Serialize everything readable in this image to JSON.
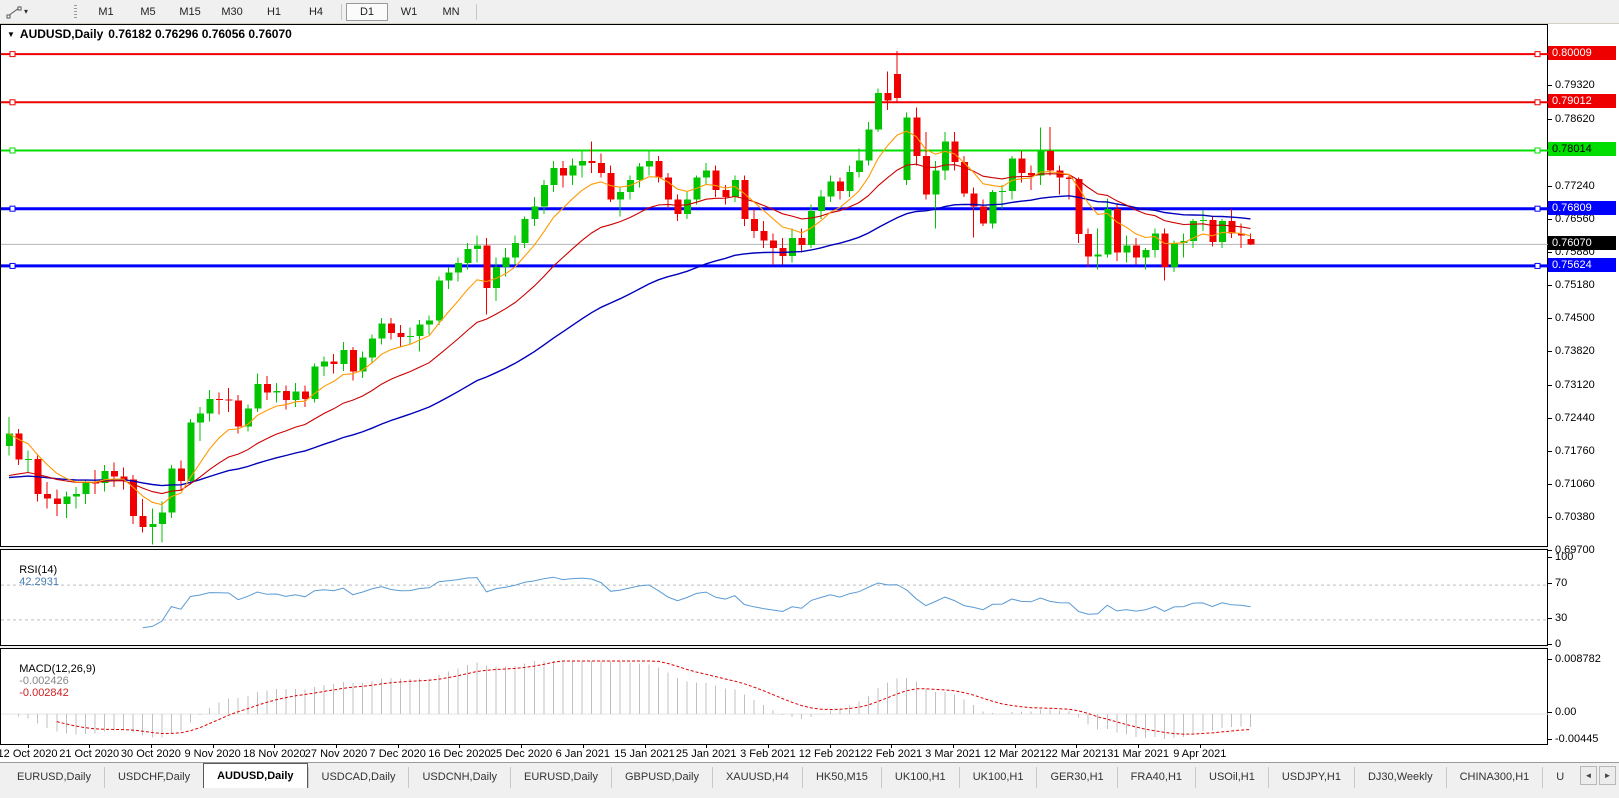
{
  "toolbar": {
    "timeframes": [
      "M1",
      "M5",
      "M15",
      "M30",
      "H1",
      "H4",
      "D1",
      "W1",
      "MN"
    ],
    "active_timeframe": "D1"
  },
  "chart": {
    "title_symbol": "AUDUSD,Daily",
    "title_values": "0.76182 0.76296 0.76056 0.76070",
    "price_range": {
      "max": 0.80612,
      "min": 0.69784
    },
    "price_ticks": [
      "0.79320",
      "0.78620",
      "0.77940",
      "0.77240",
      "0.76560",
      "0.75880",
      "0.75180",
      "0.74500",
      "0.73820",
      "0.73120",
      "0.72440",
      "0.71760",
      "0.71060",
      "0.70380",
      "0.69700"
    ],
    "lines": [
      {
        "price": 0.80009,
        "label": "0.80009",
        "color": "#ee0000",
        "text": "#ffffff",
        "width": 2
      },
      {
        "price": 0.79012,
        "label": "0.79012",
        "color": "#ee0000",
        "text": "#ffffff",
        "width": 2
      },
      {
        "price": 0.78014,
        "label": "0.78014",
        "color": "#00dd00",
        "text": "#000000",
        "width": 2
      },
      {
        "price": 0.76809,
        "label": "0.76809",
        "color": "#0000ff",
        "text": "#ffffff",
        "width": 3
      },
      {
        "price": 0.75624,
        "label": "0.75624",
        "color": "#0000ff",
        "text": "#ffffff",
        "width": 3
      }
    ],
    "current_price": {
      "price": 0.7607,
      "label": "0.76070",
      "line_color": "#b4b4b4",
      "bg": "#000000",
      "text": "#ffffff"
    },
    "colors": {
      "bull": "#00c400",
      "bear": "#f00000",
      "ma_fast": "#ff9900",
      "ma_mid": "#cc0000",
      "ma_slow": "#0000bb"
    },
    "ma_periods": {
      "fast": 8,
      "mid": 20,
      "slow": 50
    },
    "dates": [
      "12 Oct 2020",
      "21 Oct 2020",
      "30 Oct 2020",
      "9 Nov 2020",
      "18 Nov 2020",
      "27 Nov 2020",
      "7 Dec 2020",
      "16 Dec 2020",
      "25 Dec 2020",
      "6 Jan 2021",
      "15 Jan 2021",
      "25 Jan 2021",
      "3 Feb 2021",
      "12 Feb 2021",
      "22 Feb 2021",
      "3 Mar 2021",
      "12 Mar 2021",
      "22 Mar 2021",
      "31 Mar 2021",
      "9 Apr 2021"
    ],
    "chart_data": {
      "type": "candlestick+indicators",
      "symbol": "AUDUSD",
      "timeframe": "Daily",
      "candles_ohlc": [
        [
          0.719,
          0.725,
          0.717,
          0.7215
        ],
        [
          0.7215,
          0.7225,
          0.715,
          0.7162
        ],
        [
          0.7162,
          0.718,
          0.7135,
          0.7163
        ],
        [
          0.7163,
          0.717,
          0.7075,
          0.709
        ],
        [
          0.709,
          0.7115,
          0.706,
          0.7081
        ],
        [
          0.7081,
          0.71,
          0.7045,
          0.707
        ],
        [
          0.707,
          0.7095,
          0.704,
          0.7085
        ],
        [
          0.7085,
          0.7105,
          0.706,
          0.709
        ],
        [
          0.709,
          0.712,
          0.707,
          0.7114
        ],
        [
          0.7114,
          0.714,
          0.709,
          0.7113
        ],
        [
          0.7113,
          0.715,
          0.7095,
          0.7138
        ],
        [
          0.7138,
          0.7155,
          0.7105,
          0.7126
        ],
        [
          0.7126,
          0.7145,
          0.71,
          0.712
        ],
        [
          0.712,
          0.713,
          0.7028,
          0.7045
        ],
        [
          0.7045,
          0.708,
          0.701,
          0.7022
        ],
        [
          0.7022,
          0.706,
          0.6986,
          0.7028
        ],
        [
          0.7028,
          0.7075,
          0.699,
          0.7052
        ],
        [
          0.7052,
          0.715,
          0.704,
          0.7143
        ],
        [
          0.7143,
          0.716,
          0.71,
          0.7117
        ],
        [
          0.7117,
          0.7245,
          0.711,
          0.7238
        ],
        [
          0.7238,
          0.727,
          0.72,
          0.7257
        ],
        [
          0.7257,
          0.7305,
          0.724,
          0.7287
        ],
        [
          0.7287,
          0.73,
          0.7255,
          0.7286
        ],
        [
          0.7286,
          0.731,
          0.726,
          0.7284
        ],
        [
          0.7284,
          0.7295,
          0.7215,
          0.723
        ],
        [
          0.723,
          0.7275,
          0.722,
          0.7267
        ],
        [
          0.7267,
          0.734,
          0.726,
          0.7318
        ],
        [
          0.7318,
          0.7335,
          0.7285,
          0.73
        ],
        [
          0.73,
          0.732,
          0.728,
          0.7303
        ],
        [
          0.7303,
          0.7315,
          0.7265,
          0.7285
        ],
        [
          0.7285,
          0.732,
          0.727,
          0.7302
        ],
        [
          0.7302,
          0.7315,
          0.727,
          0.7287
        ],
        [
          0.7287,
          0.736,
          0.728,
          0.7354
        ],
        [
          0.7354,
          0.7375,
          0.7335,
          0.7365
        ],
        [
          0.7365,
          0.738,
          0.734,
          0.7359
        ],
        [
          0.7359,
          0.7405,
          0.7345,
          0.7388
        ],
        [
          0.7388,
          0.7395,
          0.7325,
          0.7344
        ],
        [
          0.7344,
          0.7385,
          0.733,
          0.7373
        ],
        [
          0.7373,
          0.742,
          0.736,
          0.7412
        ],
        [
          0.7412,
          0.7455,
          0.74,
          0.7443
        ],
        [
          0.7443,
          0.7455,
          0.741,
          0.7424
        ],
        [
          0.7424,
          0.744,
          0.7395,
          0.7415
        ],
        [
          0.7415,
          0.7435,
          0.74,
          0.7417
        ],
        [
          0.7417,
          0.745,
          0.7385,
          0.7441
        ],
        [
          0.7441,
          0.746,
          0.742,
          0.7449
        ],
        [
          0.7449,
          0.754,
          0.744,
          0.7532
        ],
        [
          0.7532,
          0.756,
          0.7515,
          0.7549
        ],
        [
          0.7549,
          0.758,
          0.753,
          0.7568
        ],
        [
          0.7568,
          0.761,
          0.7555,
          0.7597
        ],
        [
          0.7597,
          0.7625,
          0.757,
          0.7605
        ],
        [
          0.7605,
          0.762,
          0.7462,
          0.7517
        ],
        [
          0.7517,
          0.758,
          0.749,
          0.756
        ],
        [
          0.756,
          0.76,
          0.754,
          0.758
        ],
        [
          0.758,
          0.7625,
          0.7565,
          0.761
        ],
        [
          0.761,
          0.7665,
          0.76,
          0.766
        ],
        [
          0.766,
          0.7705,
          0.7645,
          0.7685
        ],
        [
          0.7685,
          0.774,
          0.767,
          0.773
        ],
        [
          0.773,
          0.778,
          0.7715,
          0.7765
        ],
        [
          0.7765,
          0.778,
          0.7725,
          0.775
        ],
        [
          0.775,
          0.7785,
          0.773,
          0.777
        ],
        [
          0.777,
          0.78,
          0.7745,
          0.778
        ],
        [
          0.778,
          0.782,
          0.7755,
          0.7775
        ],
        [
          0.7775,
          0.7795,
          0.7745,
          0.7755
        ],
        [
          0.7755,
          0.777,
          0.7695,
          0.77
        ],
        [
          0.77,
          0.7725,
          0.7665,
          0.7715
        ],
        [
          0.7715,
          0.775,
          0.77,
          0.774
        ],
        [
          0.774,
          0.7775,
          0.7725,
          0.7768
        ],
        [
          0.7768,
          0.78,
          0.775,
          0.778
        ],
        [
          0.778,
          0.779,
          0.7735,
          0.7745
        ],
        [
          0.7745,
          0.7755,
          0.768,
          0.77
        ],
        [
          0.77,
          0.771,
          0.7655,
          0.767
        ],
        [
          0.767,
          0.7715,
          0.766,
          0.77
        ],
        [
          0.77,
          0.775,
          0.769,
          0.7745
        ],
        [
          0.7745,
          0.7775,
          0.773,
          0.776
        ],
        [
          0.776,
          0.777,
          0.7705,
          0.772
        ],
        [
          0.772,
          0.773,
          0.769,
          0.7705
        ],
        [
          0.7705,
          0.775,
          0.7695,
          0.774
        ],
        [
          0.774,
          0.775,
          0.7645,
          0.766
        ],
        [
          0.766,
          0.768,
          0.762,
          0.7635
        ],
        [
          0.7635,
          0.7655,
          0.76,
          0.7615
        ],
        [
          0.7615,
          0.763,
          0.7564,
          0.76
        ],
        [
          0.76,
          0.762,
          0.7565,
          0.7583
        ],
        [
          0.7583,
          0.764,
          0.757,
          0.762
        ],
        [
          0.762,
          0.764,
          0.759,
          0.7606
        ],
        [
          0.7606,
          0.769,
          0.76,
          0.7676
        ],
        [
          0.7676,
          0.772,
          0.766,
          0.7706
        ],
        [
          0.7706,
          0.775,
          0.7695,
          0.7737
        ],
        [
          0.7737,
          0.7745,
          0.77,
          0.7718
        ],
        [
          0.7718,
          0.777,
          0.7705,
          0.7757
        ],
        [
          0.7757,
          0.7805,
          0.7745,
          0.7781
        ],
        [
          0.7781,
          0.786,
          0.777,
          0.7845
        ],
        [
          0.7845,
          0.793,
          0.784,
          0.792
        ],
        [
          0.792,
          0.7965,
          0.7885,
          0.7905
        ],
        [
          0.796,
          0.8007,
          0.79,
          0.791
        ],
        [
          0.774,
          0.788,
          0.773,
          0.787
        ],
        [
          0.787,
          0.789,
          0.777,
          0.779
        ],
        [
          0.779,
          0.784,
          0.77,
          0.771
        ],
        [
          0.771,
          0.778,
          0.764,
          0.776
        ],
        [
          0.776,
          0.784,
          0.774,
          0.782
        ],
        [
          0.782,
          0.784,
          0.776,
          0.7778
        ],
        [
          0.7778,
          0.779,
          0.7705,
          0.7712
        ],
        [
          0.7712,
          0.7725,
          0.7621,
          0.7685
        ],
        [
          0.7685,
          0.77,
          0.7645,
          0.765
        ],
        [
          0.765,
          0.772,
          0.764,
          0.7715
        ],
        [
          0.7715,
          0.773,
          0.768,
          0.7718
        ],
        [
          0.7718,
          0.779,
          0.77,
          0.7785
        ],
        [
          0.7785,
          0.78,
          0.7735,
          0.7755
        ],
        [
          0.7755,
          0.777,
          0.772,
          0.775
        ],
        [
          0.775,
          0.7849,
          0.773,
          0.78
        ],
        [
          0.78,
          0.785,
          0.775,
          0.776
        ],
        [
          0.776,
          0.777,
          0.771,
          0.7745
        ],
        [
          0.7745,
          0.775,
          0.77,
          0.7742
        ],
        [
          0.7742,
          0.7745,
          0.761,
          0.7628
        ],
        [
          0.7628,
          0.764,
          0.756,
          0.7582
        ],
        [
          0.7582,
          0.764,
          0.7555,
          0.7586
        ],
        [
          0.7586,
          0.7702,
          0.758,
          0.768
        ],
        [
          0.768,
          0.769,
          0.7573,
          0.759
        ],
        [
          0.759,
          0.7625,
          0.757,
          0.7605
        ],
        [
          0.7605,
          0.762,
          0.7565,
          0.758
        ],
        [
          0.758,
          0.76,
          0.7555,
          0.7595
        ],
        [
          0.7595,
          0.764,
          0.758,
          0.763
        ],
        [
          0.763,
          0.764,
          0.7532,
          0.756
        ],
        [
          0.756,
          0.7615,
          0.755,
          0.761
        ],
        [
          0.761,
          0.763,
          0.758,
          0.7614
        ],
        [
          0.7614,
          0.766,
          0.76,
          0.7655
        ],
        [
          0.7655,
          0.7677,
          0.7635,
          0.7657
        ],
        [
          0.7657,
          0.7665,
          0.7603,
          0.7612
        ],
        [
          0.7612,
          0.766,
          0.76,
          0.7655
        ],
        [
          0.7655,
          0.768,
          0.762,
          0.763
        ],
        [
          0.763,
          0.765,
          0.76,
          0.7625
        ],
        [
          0.76182,
          0.76296,
          0.76056,
          0.7607
        ]
      ]
    }
  },
  "rsi": {
    "label": "RSI(14)",
    "value": "42.2931",
    "period": 14,
    "levels": [
      70,
      30
    ],
    "axis": [
      "100",
      "70",
      "30",
      "0"
    ],
    "color": "#5b9bd5",
    "level_color": "#bdbdbd"
  },
  "macd": {
    "label": "MACD(12,26,9)",
    "value1": "-0.002426",
    "value2": "-0.002842",
    "fast": 12,
    "slow": 26,
    "signal": 9,
    "axis_max": "0.008782",
    "axis_zero": "0.00",
    "axis_min": "-0.00445",
    "hist_color": "#c0c0c0",
    "signal_color": "#e00000"
  },
  "tabs": {
    "items": [
      "EURUSD,Daily",
      "USDCHF,Daily",
      "AUDUSD,Daily",
      "USDCAD,Daily",
      "USDCNH,Daily",
      "EURUSD,Daily",
      "GBPUSD,Daily",
      "XAUUSD,H4",
      "HK50,M15",
      "UK100,H1",
      "UK100,H1",
      "GER30,H1",
      "FRA40,H1",
      "USOil,H1",
      "USDJPY,H1",
      "DJ30,Weekly",
      "CHINA300,H1",
      "U"
    ],
    "active_index": 2,
    "left_arrow": "◄",
    "right_arrow": "►"
  }
}
